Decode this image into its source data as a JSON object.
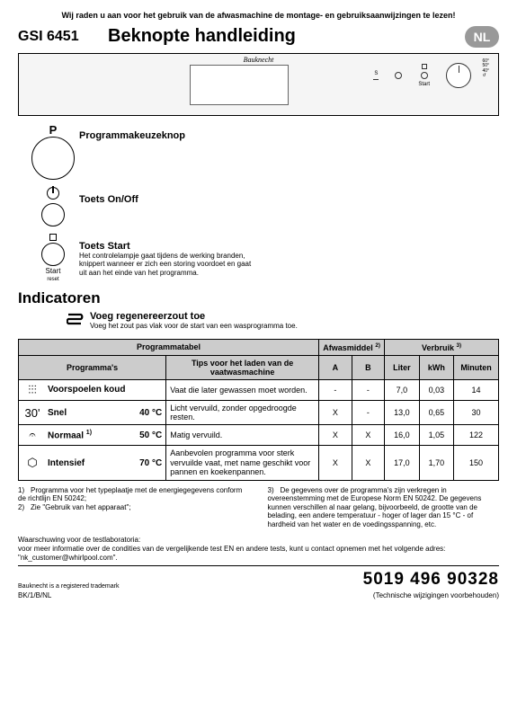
{
  "top_warning": "Wij raden u aan voor het gebruik van de afwasmachine de montage- en gebruiksaanwijzingen te lezen!",
  "model": "GSI 6451",
  "main_title": "Beknopte handleiding",
  "nl_badge": "NL",
  "panel_logo": "Bauknecht",
  "panel": {
    "p_label": "P",
    "start_label": "Start",
    "start_sub": "reset",
    "dial_marks": "60°\n50°\n40°\n↺"
  },
  "controls": {
    "program": {
      "sym": "P",
      "label": "Programmakeuzeknop"
    },
    "onoff": {
      "label": "Toets On/Off"
    },
    "start": {
      "label": "Toets Start",
      "desc": "Het controlelampje gaat tijdens de werking branden, knippert wanneer er zich een storing voordoet en gaat uit aan het einde van het programma.",
      "btn": "Start",
      "btn_sub": "reset"
    }
  },
  "indicators_heading": "Indicatoren",
  "indicator_salt": {
    "icon": "S",
    "title": "Voeg regenereerzout toe",
    "desc": "Voeg het zout pas vlak voor de start van een wasprogramma toe."
  },
  "table": {
    "header_main": "Programmatabel",
    "header_detergent": "Afwasmiddel",
    "header_detergent_sup": "2)",
    "header_usage": "Verbruik",
    "header_usage_sup": "3)",
    "col_prog": "Programma's",
    "col_tips": "Tips voor het laden van de vaatwasmachine",
    "col_a": "A",
    "col_b": "B",
    "col_l": "Liter",
    "col_kwh": "kWh",
    "col_min": "Minuten",
    "rows": [
      {
        "icon": "⫶⫶⫶",
        "name": "Voorspoelen  koud",
        "temp": "",
        "tip": "Vaat die later gewassen moet worden.",
        "a": "-",
        "b": "-",
        "l": "7,0",
        "kwh": "0,03",
        "min": "14"
      },
      {
        "icon": "30'",
        "name": "Snel",
        "temp": "40 °C",
        "tip": "Licht vervuild, zonder opgedroogde resten.",
        "a": "X",
        "b": "-",
        "l": "13,0",
        "kwh": "0,65",
        "min": "30"
      },
      {
        "icon": "𝄐",
        "name": "Normaal",
        "name_sup": "1)",
        "temp": "50 °C",
        "tip": "Matig vervuild.",
        "a": "X",
        "b": "X",
        "l": "16,0",
        "kwh": "1,05",
        "min": "122"
      },
      {
        "icon": "⬡",
        "name": "Intensief",
        "temp": "70 °C",
        "tip": "Aanbevolen programma voor sterk vervuilde vaat, met name geschikt voor pannen en koekenpannen.",
        "a": "X",
        "b": "X",
        "l": "17,0",
        "kwh": "1,70",
        "min": "150"
      }
    ]
  },
  "footnotes": {
    "left1_n": "1)",
    "left1": "Programma voor het typeplaatje met de energiegegevens conform de richtlijn EN 50242;",
    "left2_n": "2)",
    "left2": "Zie \"Gebruik van het apparaat\";",
    "right_n": "3)",
    "right": "De gegevens over de programma's zijn verkregen in overeenstemming met de Europese Norm EN 50242. De gegevens kunnen verschillen al naar gelang, bijvoorbeeld, de grootte van de belading, een andere temperatuur - hoger of lager dan 15 °C - of hardheid van het water en de voedingsspanning, etc."
  },
  "lab": {
    "title": "Waarschuwing voor de testlaboratoria:",
    "body": "voor meer informatie over de condities van de vergelijkende test EN en andere tests, kunt u contact opnemen met het volgende adres: \"nk_customer@whirlpool.com\"."
  },
  "trademark": "Bauknecht is a registered trademark",
  "partno": "5019 496 90328",
  "footer_left": "BK/1/B/NL",
  "footer_right": "(Technische wijzigingen voorbehouden)"
}
